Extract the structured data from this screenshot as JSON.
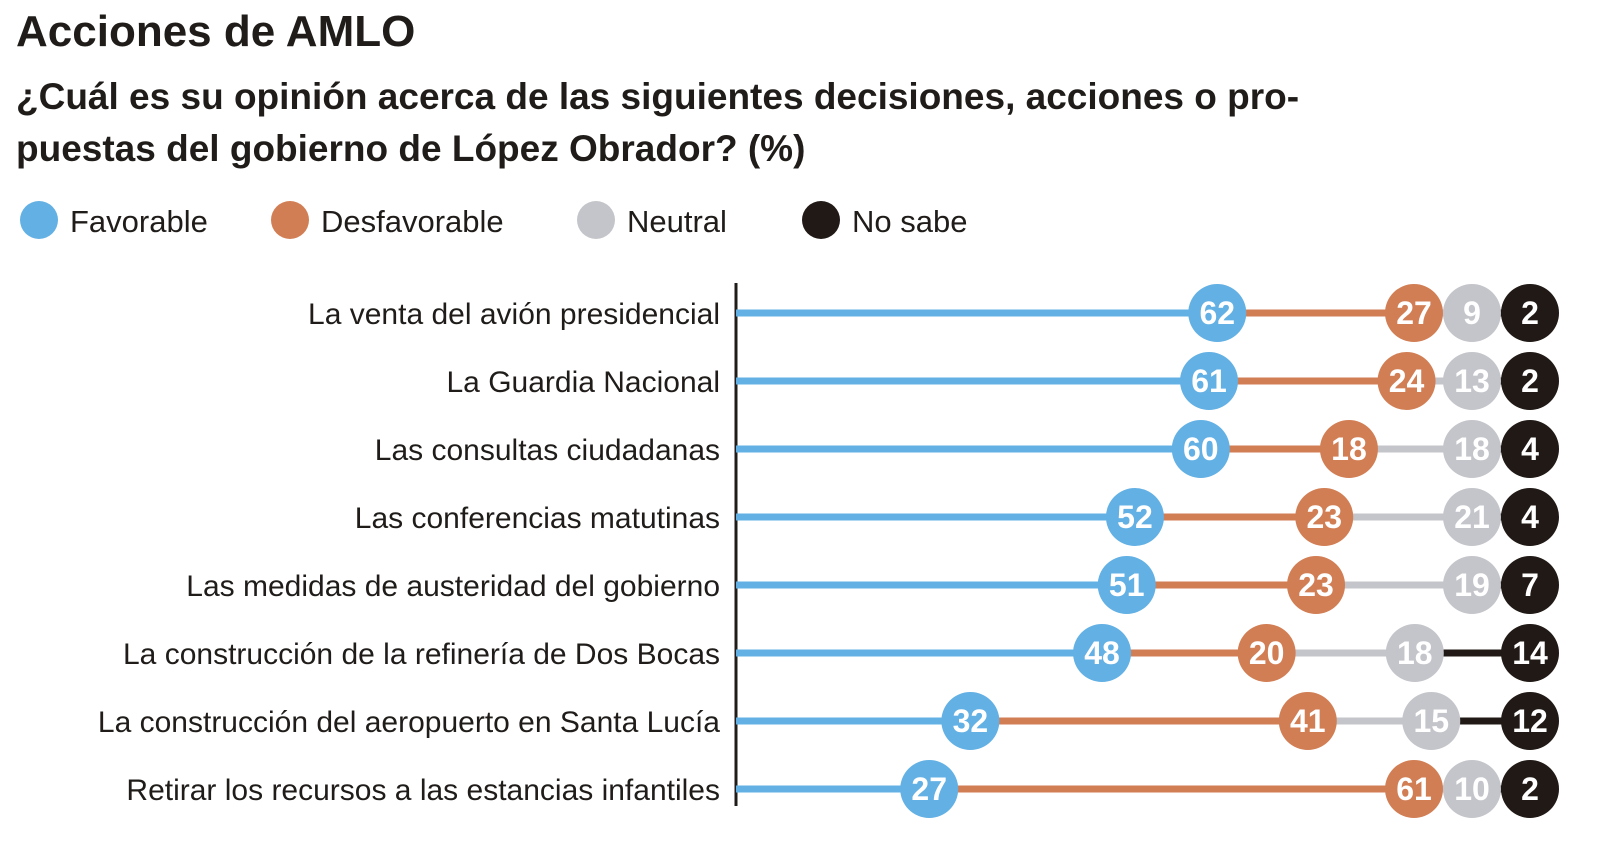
{
  "chart_data": {
    "type": "bar",
    "subtype": "stacked-100-dot-line",
    "title": "Acciones de AMLO",
    "subtitle_lines": [
      "¿Cuál es su opinión acerca de las siguientes decisiones, acciones o pro-",
      "puestas del gobierno de López Obrador? (%)"
    ],
    "legend_placement": "top-left",
    "grid": false,
    "xlim": [
      0,
      100
    ],
    "categories": [
      "La venta del avión presidencial",
      "La Guardia Nacional",
      "Las consultas ciudadanas",
      "Las conferencias matutinas",
      "Las medidas de austeridad del gobierno",
      "La construcción de la refinería de Dos Bocas",
      "La construcción del aeropuerto en Santa Lucía",
      "Retirar los recursos a las estancias infantiles"
    ],
    "series": [
      {
        "name": "Favorable",
        "color": "#62b0e4",
        "values": [
          62,
          61,
          60,
          52,
          51,
          48,
          32,
          27
        ]
      },
      {
        "name": "Desfavorable",
        "color": "#d27e54",
        "values": [
          27,
          24,
          18,
          23,
          23,
          20,
          41,
          61
        ]
      },
      {
        "name": "Neutral",
        "color": "#c4c5ca",
        "values": [
          9,
          13,
          18,
          21,
          19,
          18,
          15,
          10
        ]
      },
      {
        "name": "No sabe",
        "color": "#201916",
        "values": [
          2,
          2,
          4,
          4,
          7,
          14,
          12,
          2
        ]
      }
    ]
  }
}
